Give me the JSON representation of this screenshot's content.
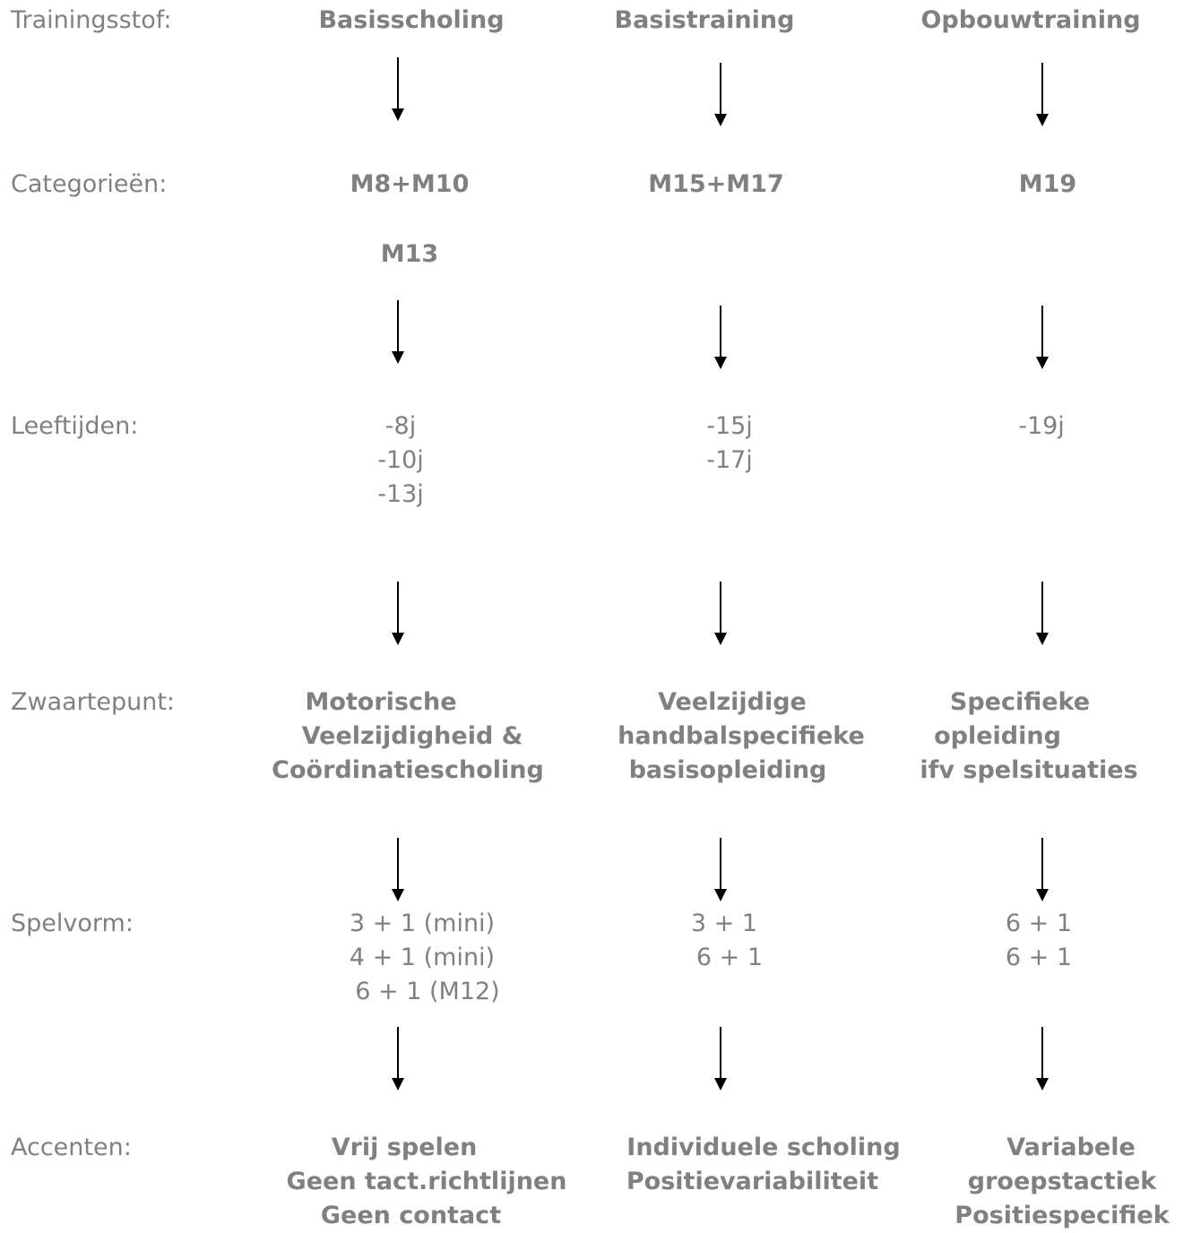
{
  "rows": {
    "trainingsstof": {
      "label": "Trainingsstof:",
      "cols": [
        [
          "Basisscholing"
        ],
        [
          "Basistraining"
        ],
        [
          "Opbouwtraining"
        ]
      ]
    },
    "categorieen": {
      "label": "Categorieën:",
      "cols": [
        [
          "M8+M10",
          "M13"
        ],
        [
          "M15+M17"
        ],
        [
          "M19"
        ]
      ]
    },
    "leeftijden": {
      "label": "Leeftijden:",
      "cols": [
        [
          "-8j",
          "-10j",
          "-13j"
        ],
        [
          "-15j",
          "-17j"
        ],
        [
          "-19j"
        ]
      ]
    },
    "zwaartepunt": {
      "label": "Zwaartepunt:",
      "cols": [
        [
          "Motorische",
          "Veelzijdigheid &",
          "Coördinatiescholing"
        ],
        [
          "Veelzijdige",
          "handbalspecifieke",
          "basisopleiding"
        ],
        [
          "Specifieke",
          "opleiding",
          "ifv spelsituaties"
        ]
      ]
    },
    "spelvorm": {
      "label": "Spelvorm:",
      "cols": [
        [
          "3 + 1 (mini)",
          "4 + 1 (mini)",
          "6 + 1 (M12)"
        ],
        [
          "3 + 1",
          "6 + 1"
        ],
        [
          "6 + 1",
          "6 + 1"
        ]
      ]
    },
    "accenten": {
      "label": "Accenten:",
      "cols": [
        [
          "Vrij spelen",
          "Geen tact.richtlijnen",
          "Geen contact"
        ],
        [
          "Individuele scholing",
          "Positievariabiliteit"
        ],
        [
          "Variabele",
          "groepstactiek",
          "Positiespecifiek"
        ]
      ]
    }
  },
  "colors": {
    "text": "#808080",
    "arrow": "#000000"
  }
}
